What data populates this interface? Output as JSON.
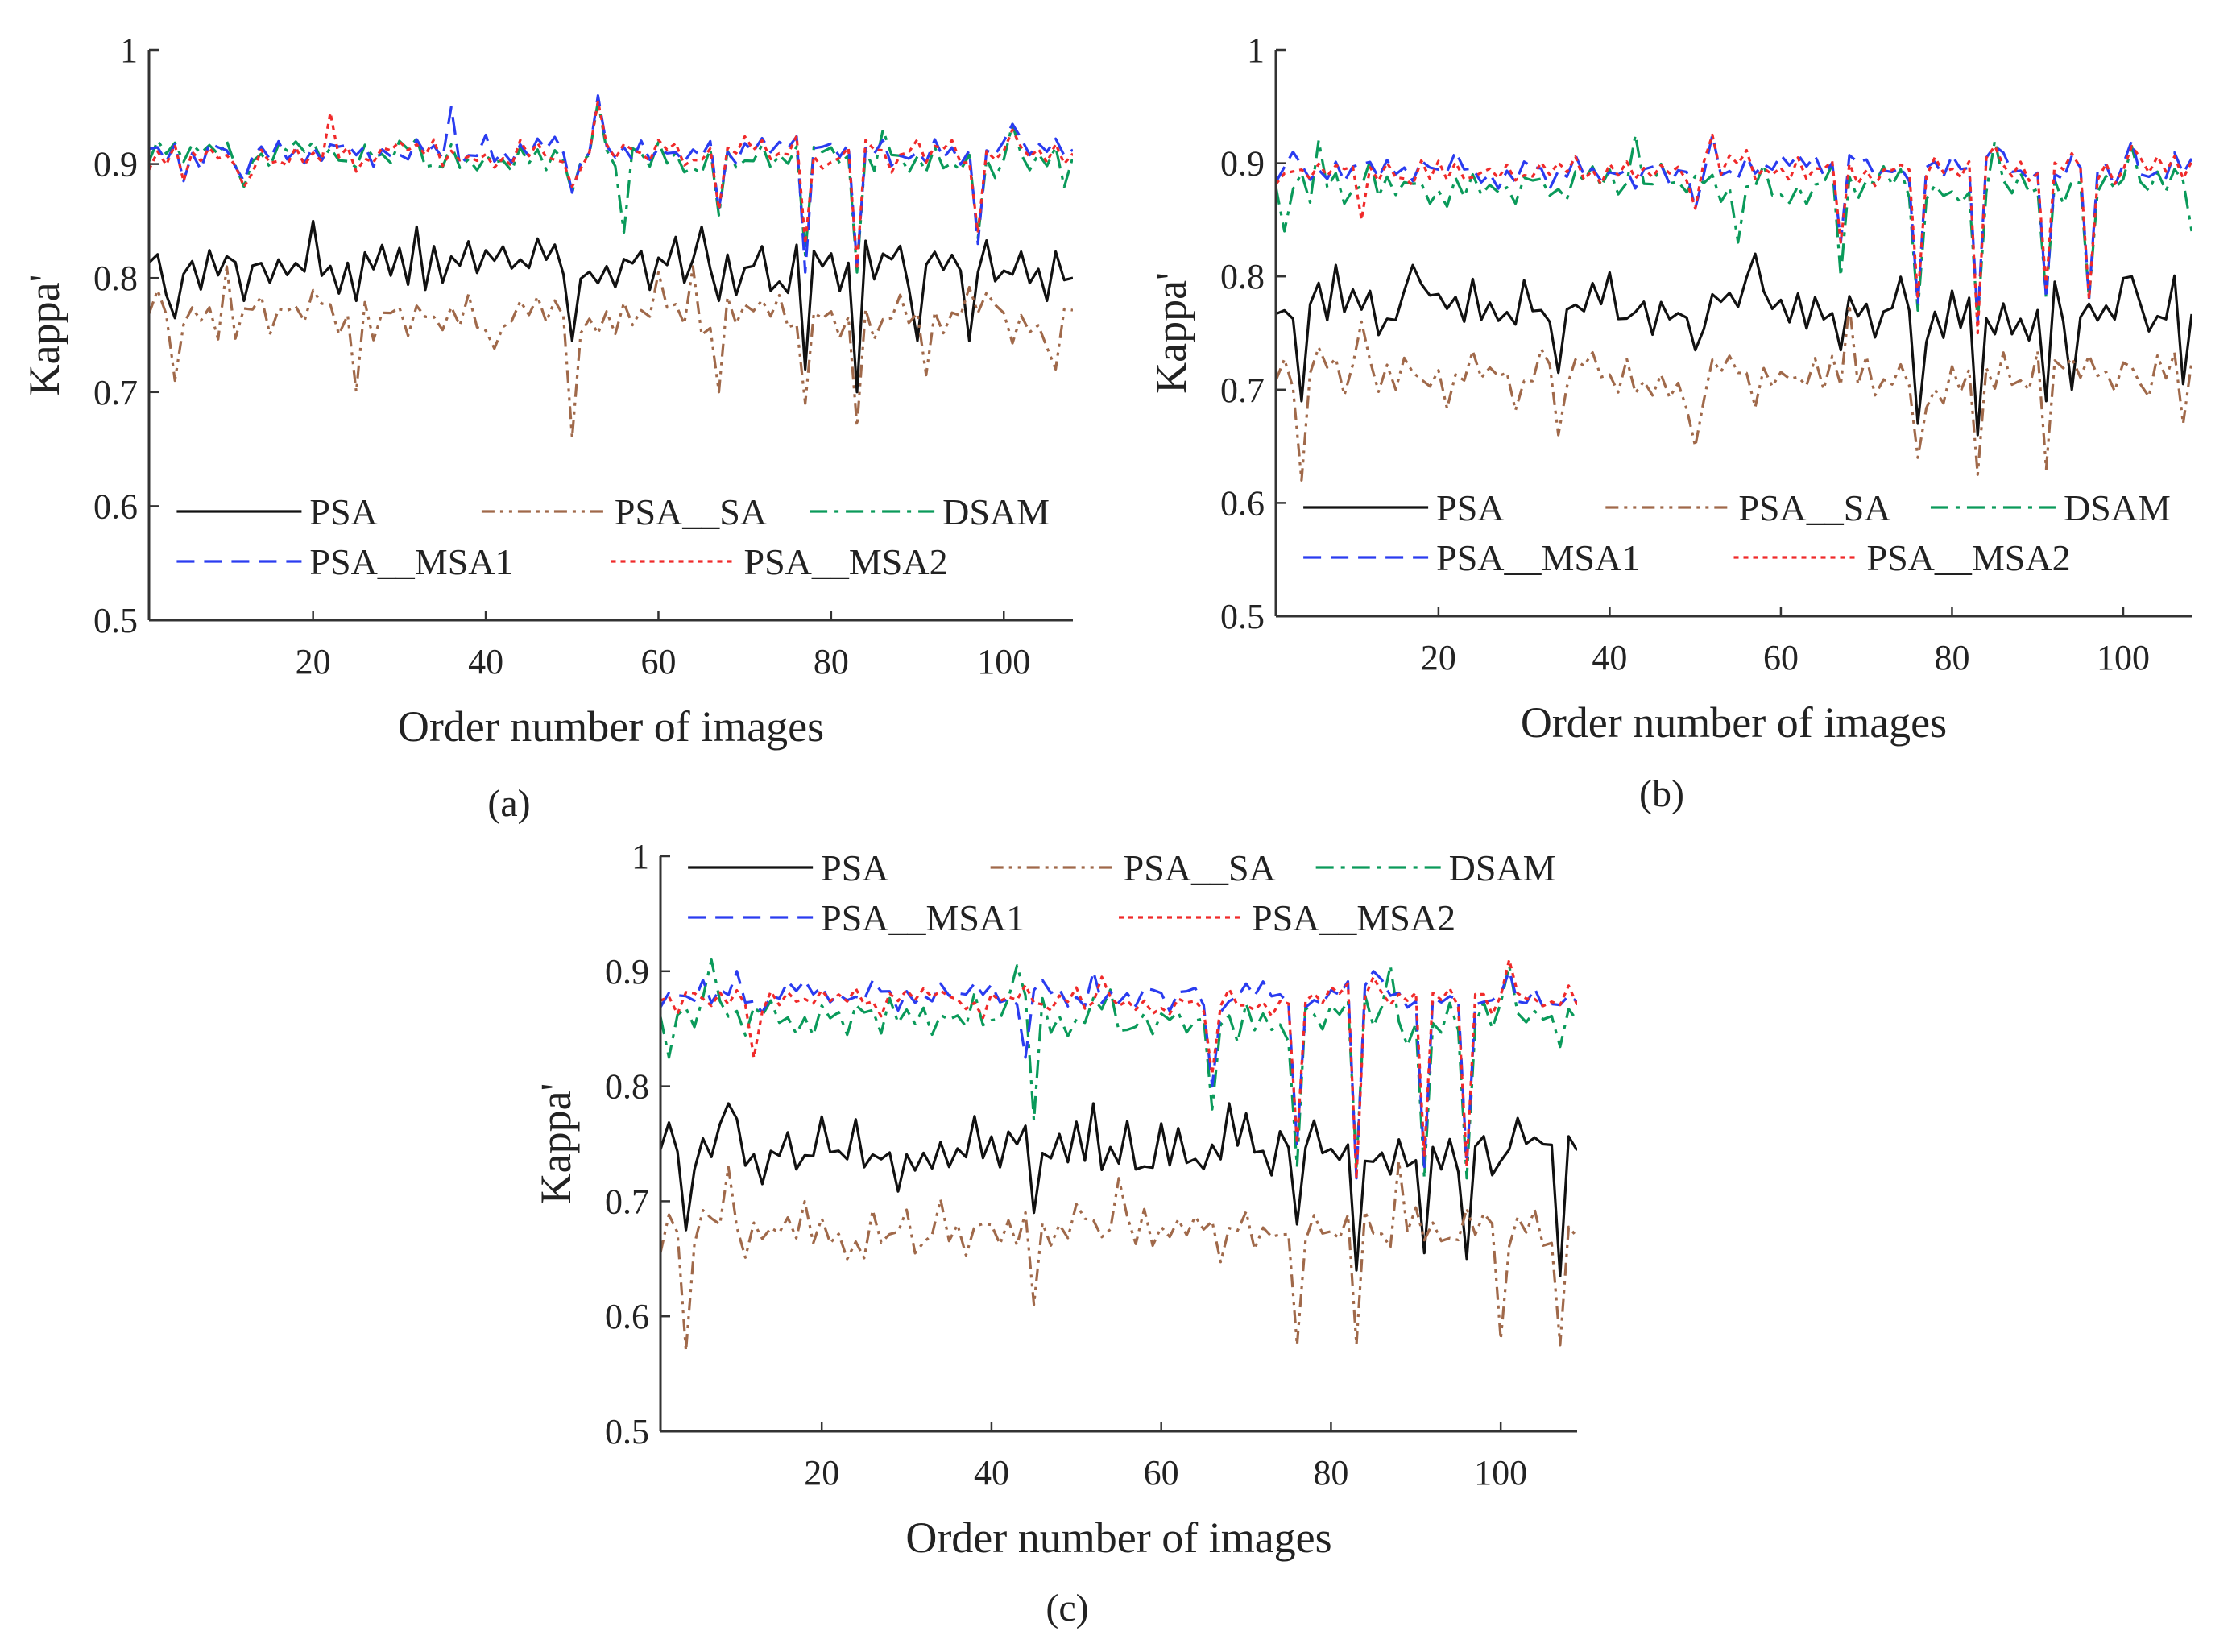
{
  "figure": {
    "caption_a": "(a)",
    "caption_b": "(b)",
    "caption_c": "(c)"
  },
  "series_styles": [
    {
      "name": "PSA",
      "color": "#111111",
      "dash": "solid"
    },
    {
      "name": "PSA__SA",
      "color": "#a0694a",
      "dash": "dash-dot-dot"
    },
    {
      "name": "DSAM",
      "color": "#0a9a5a",
      "dash": "dash-dot"
    },
    {
      "name": "PSA__MSA1",
      "color": "#2a3cf0",
      "dash": "dashed"
    },
    {
      "name": "PSA__MSA2",
      "color": "#f02a2a",
      "dash": "dotted"
    }
  ],
  "chart_data": [
    {
      "id": "a",
      "type": "line",
      "title": "",
      "xlabel": "Order number of images",
      "ylabel": "Kappa'",
      "xlim": [
        1,
        108
      ],
      "ylim": [
        0.5,
        1
      ],
      "xticks": [
        20,
        40,
        60,
        80,
        100
      ],
      "yticks": [
        0.5,
        0.6,
        0.7,
        0.8,
        0.9,
        1
      ],
      "ytick_labels": [
        "0.5",
        "0.6",
        "0.7",
        "0.8",
        "0.9",
        "1"
      ],
      "legend_position": "bottom (inside axes)",
      "x": "1..108 (image order number)",
      "series": [
        {
          "name": "PSA",
          "base": 0.81,
          "amp": 0.025,
          "seed": 11,
          "dips": [
            [
              4,
              0.765
            ],
            [
              12,
              0.78
            ],
            [
              25,
              0.78
            ],
            [
              50,
              0.745
            ],
            [
              67,
              0.78
            ],
            [
              77,
              0.72
            ],
            [
              83,
              0.7
            ],
            [
              90,
              0.745
            ],
            [
              96,
              0.745
            ],
            [
              105,
              0.78
            ]
          ],
          "peaks": [
            [
              20,
              0.85
            ],
            [
              32,
              0.845
            ],
            [
              65,
              0.845
            ]
          ]
        },
        {
          "name": "PSA__SA",
          "base": 0.765,
          "amp": 0.022,
          "seed": 23,
          "dips": [
            [
              4,
              0.71
            ],
            [
              25,
              0.7
            ],
            [
              50,
              0.66
            ],
            [
              67,
              0.7
            ],
            [
              77,
              0.69
            ],
            [
              83,
              0.67
            ],
            [
              91,
              0.715
            ],
            [
              106,
              0.72
            ]
          ],
          "peaks": [
            [
              10,
              0.81
            ],
            [
              60,
              0.805
            ],
            [
              64,
              0.81
            ]
          ]
        },
        {
          "name": "DSAM",
          "base": 0.905,
          "amp": 0.015,
          "seed": 37,
          "dips": [
            [
              12,
              0.88
            ],
            [
              50,
              0.875
            ],
            [
              56,
              0.84
            ],
            [
              67,
              0.855
            ],
            [
              77,
              0.82
            ],
            [
              83,
              0.805
            ],
            [
              97,
              0.835
            ],
            [
              107,
              0.88
            ]
          ],
          "peaks": [
            [
              53,
              0.955
            ],
            [
              86,
              0.93
            ],
            [
              101,
              0.935
            ]
          ]
        },
        {
          "name": "PSA__MSA1",
          "base": 0.91,
          "amp": 0.014,
          "seed": 41,
          "dips": [
            [
              5,
              0.885
            ],
            [
              12,
              0.885
            ],
            [
              50,
              0.875
            ],
            [
              67,
              0.86
            ],
            [
              77,
              0.805
            ],
            [
              83,
              0.81
            ],
            [
              97,
              0.83
            ]
          ],
          "peaks": [
            [
              36,
              0.95
            ],
            [
              53,
              0.96
            ],
            [
              101,
              0.935
            ]
          ]
        },
        {
          "name": "PSA__MSA2",
          "base": 0.908,
          "amp": 0.014,
          "seed": 53,
          "dips": [
            [
              5,
              0.885
            ],
            [
              12,
              0.88
            ],
            [
              50,
              0.88
            ],
            [
              67,
              0.86
            ],
            [
              77,
              0.83
            ],
            [
              83,
              0.81
            ],
            [
              97,
              0.84
            ]
          ],
          "peaks": [
            [
              22,
              0.945
            ],
            [
              53,
              0.955
            ],
            [
              101,
              0.93
            ]
          ]
        }
      ]
    },
    {
      "id": "b",
      "type": "line",
      "title": "",
      "xlabel": "Order number of images",
      "ylabel": "Kappa'",
      "xlim": [
        1,
        108
      ],
      "ylim": [
        0.5,
        1
      ],
      "xticks": [
        20,
        40,
        60,
        80,
        100
      ],
      "yticks": [
        0.5,
        0.6,
        0.7,
        0.8,
        0.9,
        1
      ],
      "ytick_labels": [
        "0.5",
        "0.6",
        "0.7",
        "0.8",
        "0.9",
        "1"
      ],
      "legend_position": "bottom (inside axes)",
      "x": "1..108 (image order number)",
      "series": [
        {
          "name": "PSA",
          "base": 0.77,
          "amp": 0.028,
          "seed": 61,
          "dips": [
            [
              4,
              0.69
            ],
            [
              34,
              0.715
            ],
            [
              50,
              0.735
            ],
            [
              67,
              0.735
            ],
            [
              76,
              0.67
            ],
            [
              83,
              0.66
            ],
            [
              91,
              0.69
            ],
            [
              94,
              0.7
            ],
            [
              107,
              0.705
            ]
          ],
          "peaks": [
            [
              8,
              0.81
            ],
            [
              17,
              0.81
            ],
            [
              57,
              0.82
            ],
            [
              101,
              0.8
            ]
          ]
        },
        {
          "name": "PSA__SA",
          "base": 0.71,
          "amp": 0.025,
          "seed": 73,
          "dips": [
            [
              4,
              0.62
            ],
            [
              34,
              0.66
            ],
            [
              50,
              0.65
            ],
            [
              76,
              0.64
            ],
            [
              83,
              0.625
            ],
            [
              91,
              0.63
            ],
            [
              107,
              0.67
            ]
          ],
          "peaks": [
            [
              11,
              0.76
            ],
            [
              68,
              0.775
            ],
            [
              101,
              0.72
            ]
          ]
        },
        {
          "name": "DSAM",
          "base": 0.88,
          "amp": 0.018,
          "seed": 79,
          "dips": [
            [
              2,
              0.84
            ],
            [
              55,
              0.83
            ],
            [
              67,
              0.8
            ],
            [
              76,
              0.77
            ],
            [
              83,
              0.76
            ],
            [
              91,
              0.78
            ],
            [
              96,
              0.78
            ],
            [
              108,
              0.84
            ]
          ],
          "peaks": [
            [
              6,
              0.92
            ],
            [
              43,
              0.925
            ],
            [
              85,
              0.92
            ],
            [
              101,
              0.915
            ]
          ]
        },
        {
          "name": "PSA__MSA1",
          "base": 0.895,
          "amp": 0.014,
          "seed": 83,
          "dips": [
            [
              50,
              0.86
            ],
            [
              67,
              0.83
            ],
            [
              76,
              0.775
            ],
            [
              83,
              0.76
            ],
            [
              91,
              0.78
            ],
            [
              96,
              0.78
            ]
          ],
          "peaks": [
            [
              3,
              0.91
            ],
            [
              52,
              0.925
            ],
            [
              85,
              0.915
            ],
            [
              101,
              0.92
            ]
          ]
        },
        {
          "name": "PSA__MSA2",
          "base": 0.893,
          "amp": 0.014,
          "seed": 89,
          "dips": [
            [
              11,
              0.85
            ],
            [
              50,
              0.86
            ],
            [
              67,
              0.83
            ],
            [
              76,
              0.78
            ],
            [
              83,
              0.75
            ],
            [
              91,
              0.79
            ],
            [
              96,
              0.78
            ]
          ],
          "peaks": [
            [
              52,
              0.925
            ],
            [
              85,
              0.915
            ],
            [
              101,
              0.915
            ]
          ]
        }
      ]
    },
    {
      "id": "c",
      "type": "line",
      "title": "",
      "xlabel": "Order number of images",
      "ylabel": "Kappa'",
      "xlim": [
        1,
        109
      ],
      "ylim": [
        0.5,
        1
      ],
      "xticks": [
        20,
        40,
        60,
        80,
        100
      ],
      "yticks": [
        0.5,
        0.6,
        0.7,
        0.8,
        0.9,
        1
      ],
      "ytick_labels": [
        "0.5",
        "0.6",
        "0.7",
        "0.8",
        "0.9",
        "1"
      ],
      "legend_position": "top (inside axes)",
      "x": "1..109 (image order number)",
      "series": [
        {
          "name": "PSA",
          "base": 0.745,
          "amp": 0.028,
          "seed": 97,
          "dips": [
            [
              4,
              0.675
            ],
            [
              45,
              0.69
            ],
            [
              76,
              0.68
            ],
            [
              83,
              0.64
            ],
            [
              91,
              0.655
            ],
            [
              96,
              0.65
            ],
            [
              107,
              0.635
            ]
          ],
          "peaks": [
            [
              9,
              0.785
            ],
            [
              52,
              0.785
            ],
            [
              68,
              0.785
            ],
            [
              101,
              0.745
            ]
          ]
        },
        {
          "name": "PSA__SA",
          "base": 0.675,
          "amp": 0.025,
          "seed": 101,
          "dips": [
            [
              4,
              0.57
            ],
            [
              45,
              0.61
            ],
            [
              76,
              0.575
            ],
            [
              83,
              0.575
            ],
            [
              100,
              0.58
            ],
            [
              107,
              0.575
            ]
          ],
          "peaks": [
            [
              9,
              0.73
            ],
            [
              55,
              0.72
            ],
            [
              88,
              0.735
            ]
          ]
        },
        {
          "name": "DSAM",
          "base": 0.86,
          "amp": 0.02,
          "seed": 103,
          "dips": [
            [
              2,
              0.825
            ],
            [
              45,
              0.77
            ],
            [
              66,
              0.78
            ],
            [
              76,
              0.73
            ],
            [
              83,
              0.73
            ],
            [
              91,
              0.72
            ],
            [
              96,
              0.72
            ]
          ],
          "peaks": [
            [
              7,
              0.91
            ],
            [
              43,
              0.905
            ],
            [
              87,
              0.905
            ],
            [
              101,
              0.905
            ]
          ]
        },
        {
          "name": "PSA__MSA1",
          "base": 0.878,
          "amp": 0.012,
          "seed": 107,
          "dips": [
            [
              44,
              0.825
            ],
            [
              66,
              0.8
            ],
            [
              76,
              0.75
            ],
            [
              83,
              0.72
            ],
            [
              91,
              0.73
            ],
            [
              96,
              0.73
            ]
          ],
          "peaks": [
            [
              10,
              0.9
            ],
            [
              52,
              0.9
            ],
            [
              85,
              0.9
            ],
            [
              101,
              0.9
            ]
          ]
        },
        {
          "name": "PSA__MSA2",
          "base": 0.874,
          "amp": 0.012,
          "seed": 109,
          "dips": [
            [
              12,
              0.825
            ],
            [
              66,
              0.81
            ],
            [
              76,
              0.75
            ],
            [
              83,
              0.72
            ],
            [
              91,
              0.74
            ],
            [
              96,
              0.73
            ]
          ],
          "peaks": [
            [
              53,
              0.895
            ],
            [
              85,
              0.895
            ],
            [
              101,
              0.91
            ]
          ]
        }
      ]
    }
  ]
}
